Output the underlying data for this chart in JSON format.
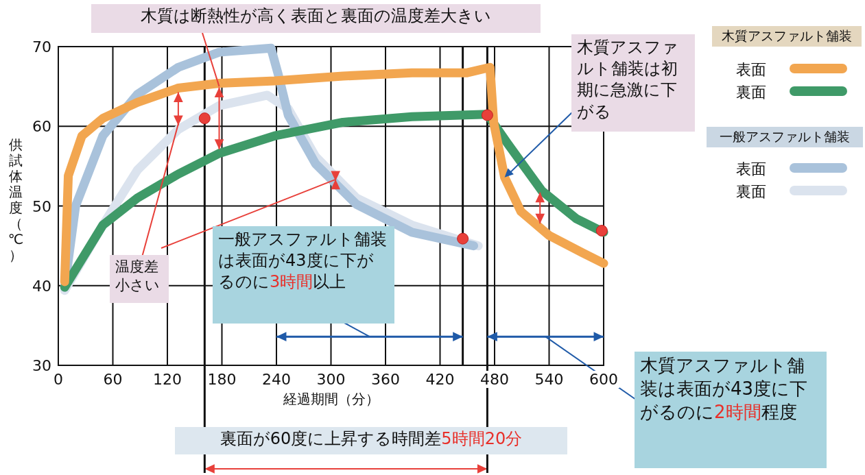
{
  "chart_data": {
    "type": "line",
    "xlabel": "経過期間（分）",
    "ylabel": "供試体温度（℃）",
    "xlim": [
      0,
      600
    ],
    "ylim": [
      30,
      70
    ],
    "xticks": [
      0,
      60,
      120,
      180,
      240,
      300,
      360,
      420,
      480,
      540,
      600
    ],
    "yticks": [
      30,
      40,
      50,
      60,
      70
    ],
    "grid": true,
    "legend": "right",
    "line_style": "solid",
    "marker": "none",
    "series": [
      {
        "name": "表面",
        "color": "#f2a650",
        "x": [
          7,
          11,
          26,
          49,
          87,
          132,
          177,
          238,
          313,
          389,
          449,
          475,
          479,
          491,
          509,
          540,
          577,
          600
        ],
        "values": [
          40.5,
          53.8,
          58.8,
          61,
          63,
          64.8,
          65.4,
          65.7,
          66.3,
          66.7,
          66.7,
          67.4,
          60.5,
          53.6,
          49.3,
          46.3,
          44.1,
          42.8
        ]
      },
      {
        "name": "裏面",
        "color": "#3f9a68",
        "x": [
          7,
          49,
          87,
          132,
          177,
          238,
          313,
          389,
          472,
          494,
          532,
          570,
          600
        ],
        "values": [
          39.8,
          47.6,
          51,
          54,
          56.6,
          58.8,
          60.5,
          61.2,
          61.5,
          57.9,
          51.9,
          48.4,
          46.7
        ]
      },
      {
        "name": "表面",
        "color": "#a9c2db",
        "x": [
          7,
          19,
          49,
          87,
          132,
          177,
          234,
          242,
          253,
          283,
          328,
          389,
          457
        ],
        "values": [
          39.8,
          50,
          58.8,
          64,
          67.4,
          69.3,
          69.8,
          66.5,
          61.4,
          55.3,
          50.2,
          46.7,
          45
        ]
      },
      {
        "name": "裏面",
        "color": "#dbe3ee",
        "x": [
          7,
          49,
          87,
          132,
          177,
          230,
          253,
          283,
          328,
          389,
          462
        ],
        "values": [
          39.4,
          47.6,
          54.5,
          59.6,
          62.6,
          63.9,
          62.2,
          56.2,
          51,
          47.6,
          45
        ]
      },
      {
        "type": "scatter",
        "marker": "circle",
        "color": "#e8403a",
        "x": [
          161,
          472,
          445,
          598
        ],
        "values": [
          61,
          61.4,
          45.9,
          46.9
        ]
      }
    ],
    "ref_lines": [
      {
        "axis": "x",
        "value": 161,
        "color": "#111111"
      },
      {
        "axis": "x",
        "value": 445,
        "color": "#111111"
      },
      {
        "axis": "x",
        "value": 472,
        "color": "#111111"
      }
    ],
    "annotations": [
      {
        "text": "木質は断熱性が高く表面と裏面の温度差大きい",
        "x": 177,
        "y": 65
      },
      {
        "text": "木質アスファルト舗装は初期に急激に下がる",
        "x": 491,
        "y": 53.6
      },
      {
        "text": "温度差小さい",
        "x": 132,
        "y": 60.3
      },
      "一般アスファルト舗装は表面が43度に下がるのに**3時間**以上",
      "木質アスファルト舗装は表面が43度に下がるのに**2時間**程度",
      "裏面が60度に上昇する時間差**5時間20分**",
      "木質アスファルト舗装",
      "一般アスファルト舗装"
    ]
  }
}
